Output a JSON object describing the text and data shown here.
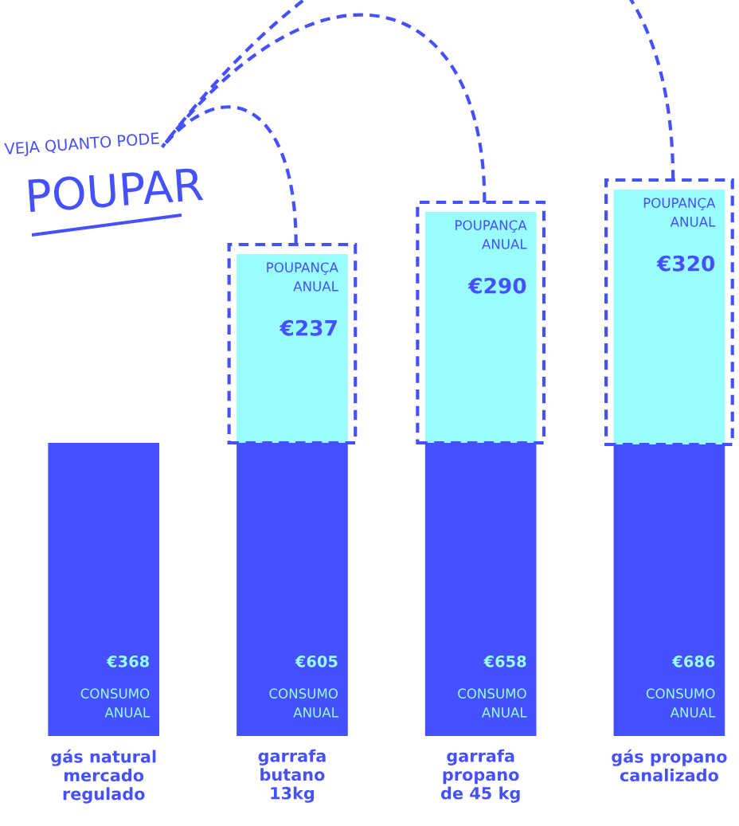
{
  "chart_data": {
    "type": "bar",
    "stacked": true,
    "categories": [
      "gás natural\nmercado\nregulado",
      "garrafa\nbutano\n13kg",
      "garrafa\npropano\nde 45 kg",
      "gás propano\ncanalizado"
    ],
    "series": [
      {
        "color": "#4550ff",
        "values": [
          368,
          368,
          368,
          366
        ]
      },
      {
        "color": "#9afdfe",
        "values": [
          null,
          237,
          290,
          320
        ],
        "value_labels": [
          null,
          "€237",
          "€290",
          "€320"
        ]
      }
    ],
    "totals": [
      "€368",
      "€605",
      "€658",
      "€686"
    ],
    "annotations": [
      "VEJA QUANTO PODE",
      "POUPAR",
      {
        "text": "CONSUMO\nANUAL",
        "x": "gás natural\nmercado\nregulado",
        "y": 0
      },
      {
        "text": "CONSUMO\nANUAL",
        "x": "garrafa\nbutano\n13kg",
        "y": 0
      },
      {
        "text": "CONSUMO\nANUAL",
        "x": "garrafa\npropano\nde 45 kg",
        "y": 0
      },
      {
        "text": "CONSUMO\nANUAL",
        "x": "gás propano\ncanalizado",
        "y": 0
      },
      {
        "text": "POUPANÇA\nANUAL",
        "x": "garrafa\nbutano\n13kg",
        "y": 605
      },
      {
        "text": "POUPANÇA\nANUAL",
        "x": "garrafa\npropano\nde 45 kg",
        "y": 658
      },
      {
        "text": "POUPANÇA\nANUAL",
        "x": "gás propano\ncanalizado",
        "y": 686
      }
    ]
  }
}
